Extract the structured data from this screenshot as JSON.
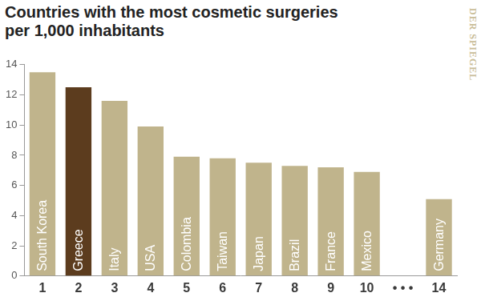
{
  "chart_data": {
    "type": "bar",
    "title": "Countries with the most cosmetic surgeries per 1,000 inhabitants",
    "source": "DER SPIEGEL",
    "categories": [
      "1",
      "2",
      "3",
      "4",
      "5",
      "6",
      "7",
      "8",
      "9",
      "10",
      "• • •",
      "14"
    ],
    "bar_labels": [
      "South Korea",
      "Greece",
      "Italy",
      "USA",
      "Colombia",
      "Taiwan",
      "Japan",
      "Brazil",
      "France",
      "Mexico",
      null,
      "Germany"
    ],
    "values": [
      13.5,
      12.5,
      11.6,
      9.9,
      7.9,
      7.8,
      7.5,
      7.3,
      7.2,
      6.9,
      null,
      5.1
    ],
    "colors": [
      "#c0b48c",
      "#5c3c1e",
      "#c0b48c",
      "#c0b48c",
      "#c0b48c",
      "#c0b48c",
      "#c0b48c",
      "#c0b48c",
      "#c0b48c",
      "#c0b48c",
      "#c0b48c",
      "#c0b48c"
    ],
    "ylim": [
      0,
      14
    ],
    "yticks": [
      0,
      2,
      4,
      6,
      8,
      10,
      12,
      14
    ],
    "grid": false
  }
}
